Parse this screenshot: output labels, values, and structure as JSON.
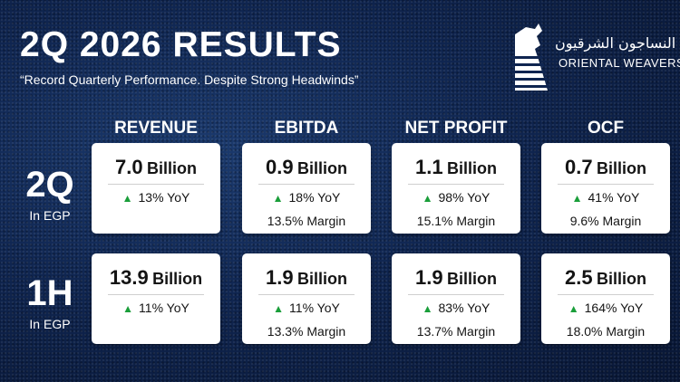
{
  "header": {
    "title": "2Q 2026 RESULTS",
    "subtitle": "“Record Quarterly Performance. Despite Strong Headwinds”"
  },
  "logo": {
    "arabic_name": "النساجون الشرقيون",
    "english_name": "ORIENTAL WEAVERS"
  },
  "columns": [
    "REVENUE",
    "EBITDA",
    "NET PROFIT",
    "OCF"
  ],
  "rows": [
    {
      "label": "2Q",
      "sublabel": "In EGP",
      "cards": [
        {
          "value": "7.0",
          "unit": "Billion",
          "yoy": "13% YoY",
          "margin": ""
        },
        {
          "value": "0.9",
          "unit": "Billion",
          "yoy": "18% YoY",
          "margin": "13.5% Margin"
        },
        {
          "value": "1.1",
          "unit": "Billion",
          "yoy": "98% YoY",
          "margin": "15.1% Margin"
        },
        {
          "value": "0.7",
          "unit": "Billion",
          "yoy": "41% YoY",
          "margin": "9.6% Margin"
        }
      ]
    },
    {
      "label": "1H",
      "sublabel": "In EGP",
      "cards": [
        {
          "value": "13.9",
          "unit": "Billion",
          "yoy": "11% YoY",
          "margin": ""
        },
        {
          "value": "1.9",
          "unit": "Billion",
          "yoy": "11% YoY",
          "margin": "13.3% Margin"
        },
        {
          "value": "1.9",
          "unit": "Billion",
          "yoy": "83% YoY",
          "margin": "13.7% Margin"
        },
        {
          "value": "2.5",
          "unit": "Billion",
          "yoy": "164% YoY",
          "margin": "18.0% Margin"
        }
      ]
    }
  ],
  "icons": {
    "yoy_indicator": "up-triangle-icon",
    "logo_mark": "oriental-weavers-logo-icon"
  },
  "colors": {
    "background": "#0f2550",
    "card": "#ffffff",
    "up_indicator": "#1a9e3a",
    "text_on_card": "#141414"
  }
}
